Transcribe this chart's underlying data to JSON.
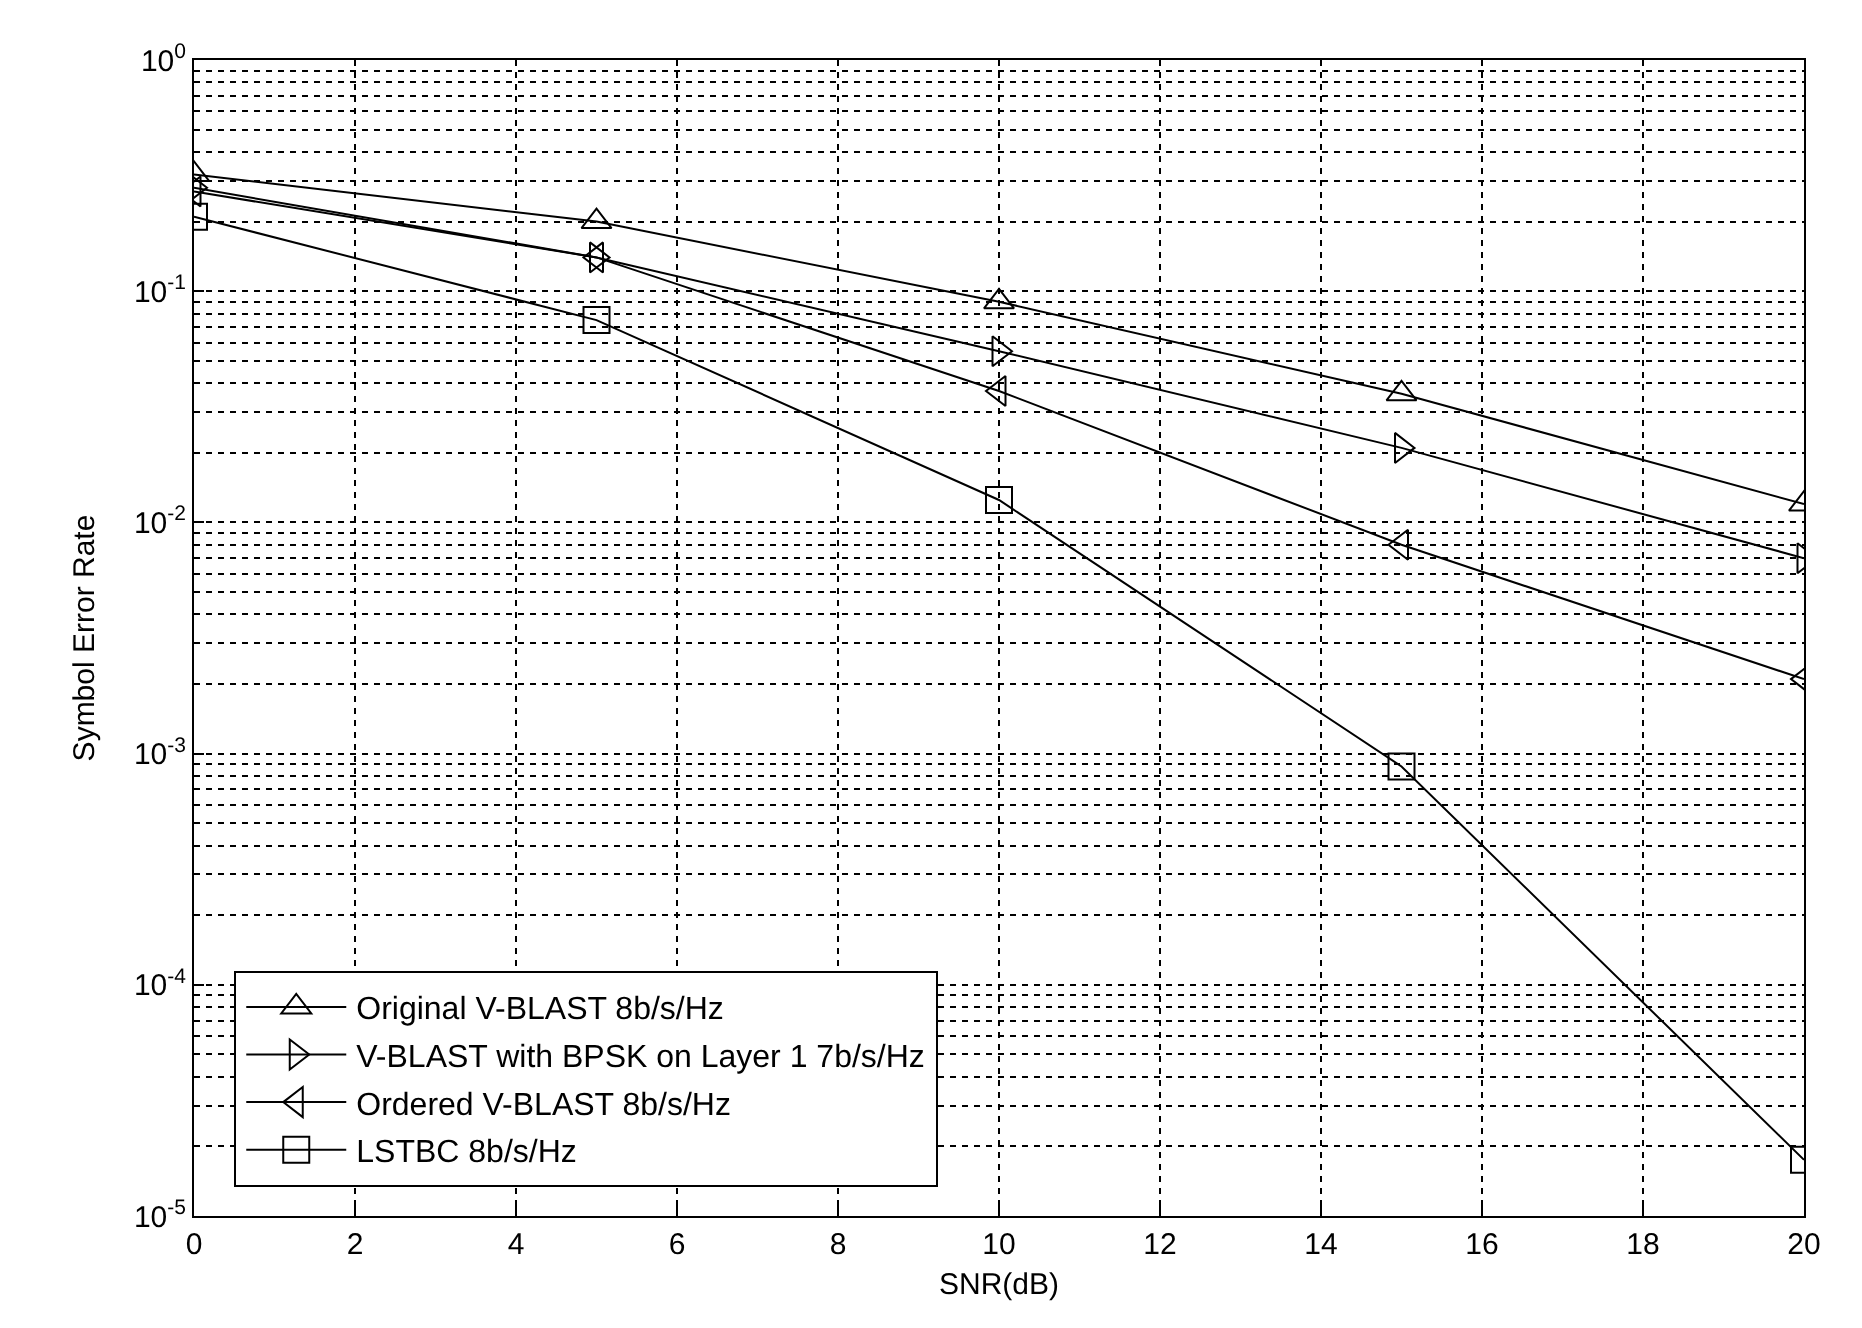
{
  "chart_data": {
    "type": "line",
    "xlabel": "SNR(dB)",
    "ylabel": "Symbol Error Rate",
    "x": [
      0,
      5,
      10,
      15,
      20
    ],
    "series": [
      {
        "name": "Original V-BLAST 8b/s/Hz",
        "color": "#000000",
        "marker": "triangle-up",
        "values": [
          0.32,
          0.2,
          0.09,
          0.036,
          0.012
        ]
      },
      {
        "name": "V-BLAST with BPSK on Layer 1 7b/s/Hz",
        "color": "#000000",
        "marker": "triangle-right",
        "values": [
          0.28,
          0.14,
          0.055,
          0.021,
          0.007
        ]
      },
      {
        "name": "Ordered V-BLAST 8b/s/Hz",
        "color": "#000000",
        "marker": "triangle-left",
        "values": [
          0.27,
          0.14,
          0.037,
          0.008,
          0.0021
        ]
      },
      {
        "name": "LSTBC 8b/s/Hz",
        "color": "#000000",
        "marker": "square",
        "values": [
          0.21,
          0.075,
          0.0125,
          0.00088,
          1.75e-05
        ]
      }
    ],
    "log": "y",
    "xlim": [
      0,
      20
    ],
    "xticks": [
      0,
      2,
      4,
      6,
      8,
      10,
      12,
      14,
      16,
      18,
      20
    ],
    "ylim": [
      1e-05,
      1
    ],
    "yticks": [
      {
        "value": 1e-05,
        "label": "10$^{-5}$"
      },
      {
        "value": 0.0001,
        "label": "10$^{-4}$"
      },
      {
        "value": 0.001,
        "label": "10$^{-3}$"
      },
      {
        "value": 0.01,
        "label": "10$^{-2}$"
      },
      {
        "value": 0.1,
        "label": "10$^{-1}$"
      },
      {
        "value": 1,
        "label": "10$^{0}$"
      }
    ],
    "grid": true,
    "legend": "bottom left",
    "line_style": "solid"
  }
}
